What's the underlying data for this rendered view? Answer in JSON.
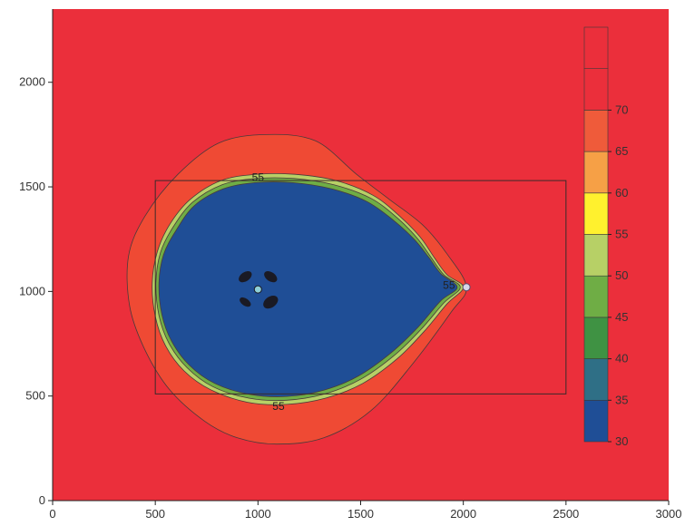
{
  "chart_data": {
    "type": "heatmap",
    "title": "",
    "xlabel": "",
    "ylabel": "",
    "xlim": [
      0,
      3000
    ],
    "ylim": [
      0,
      2350
    ],
    "x_ticks": [
      "0",
      "500",
      "1000",
      "1500",
      "2000",
      "2500",
      "3000"
    ],
    "y_ticks": [
      "0",
      "500",
      "1000",
      "1500",
      "2000"
    ],
    "x_tick_values": [
      0,
      500,
      1000,
      1500,
      2000,
      2500,
      3000
    ],
    "y_tick_values": [
      0,
      500,
      1000,
      1500,
      2000
    ],
    "colorbar": {
      "levels": [
        30,
        35,
        40,
        45,
        50,
        55,
        60,
        65,
        70
      ],
      "labels": [
        "30",
        "35",
        "40",
        "45",
        "50",
        "55",
        "60",
        "65",
        "70"
      ],
      "colors": [
        "#1f4e96",
        "#2f6f86",
        "#3f9243",
        "#6fad45",
        "#b7d066",
        "#fff12e",
        "#f6a046",
        "#ef5b3a",
        "#eb2f3b",
        "#eb2f3b"
      ]
    },
    "contours": [
      {
        "name": "outer",
        "color": "#ef4a34",
        "points": [
          [
            2015,
            1020
          ],
          [
            1920,
            1180
          ],
          [
            1800,
            1320
          ],
          [
            1640,
            1440
          ],
          [
            1480,
            1560
          ],
          [
            1280,
            1720
          ],
          [
            1040,
            1750
          ],
          [
            810,
            1710
          ],
          [
            610,
            1560
          ],
          [
            450,
            1360
          ],
          [
            370,
            1170
          ],
          [
            375,
            930
          ],
          [
            450,
            720
          ],
          [
            570,
            530
          ],
          [
            740,
            380
          ],
          [
            900,
            300
          ],
          [
            1090,
            270
          ],
          [
            1320,
            300
          ],
          [
            1550,
            430
          ],
          [
            1750,
            650
          ],
          [
            1940,
            900
          ]
        ]
      },
      {
        "name": "55",
        "color": "#b7d066",
        "points": [
          [
            2000,
            1020
          ],
          [
            1920,
            1080
          ],
          [
            1860,
            1160
          ],
          [
            1790,
            1260
          ],
          [
            1690,
            1360
          ],
          [
            1560,
            1460
          ],
          [
            1380,
            1530
          ],
          [
            1180,
            1560
          ],
          [
            990,
            1560
          ],
          [
            820,
            1530
          ],
          [
            670,
            1440
          ],
          [
            570,
            1320
          ],
          [
            510,
            1190
          ],
          [
            485,
            1040
          ],
          [
            500,
            880
          ],
          [
            550,
            740
          ],
          [
            640,
            620
          ],
          [
            770,
            530
          ],
          [
            950,
            470
          ],
          [
            1140,
            460
          ],
          [
            1330,
            490
          ],
          [
            1510,
            560
          ],
          [
            1680,
            680
          ],
          [
            1810,
            810
          ],
          [
            1920,
            940
          ]
        ]
      },
      {
        "name": "50",
        "color": "#6fad45",
        "points": [
          [
            1985,
            1020
          ],
          [
            1905,
            1080
          ],
          [
            1845,
            1160
          ],
          [
            1775,
            1255
          ],
          [
            1680,
            1350
          ],
          [
            1550,
            1445
          ],
          [
            1370,
            1510
          ],
          [
            1175,
            1540
          ],
          [
            990,
            1540
          ],
          [
            825,
            1510
          ],
          [
            680,
            1425
          ],
          [
            585,
            1305
          ],
          [
            525,
            1185
          ],
          [
            503,
            1040
          ],
          [
            518,
            885
          ],
          [
            565,
            755
          ],
          [
            655,
            635
          ],
          [
            780,
            545
          ],
          [
            955,
            490
          ],
          [
            1140,
            480
          ],
          [
            1325,
            510
          ],
          [
            1500,
            580
          ],
          [
            1665,
            695
          ],
          [
            1795,
            820
          ],
          [
            1905,
            945
          ]
        ]
      },
      {
        "name": "35",
        "color": "#1f4e96",
        "points": [
          [
            1970,
            1020
          ],
          [
            1890,
            1085
          ],
          [
            1830,
            1165
          ],
          [
            1760,
            1250
          ],
          [
            1660,
            1340
          ],
          [
            1530,
            1430
          ],
          [
            1360,
            1490
          ],
          [
            1170,
            1520
          ],
          [
            985,
            1520
          ],
          [
            830,
            1490
          ],
          [
            690,
            1410
          ],
          [
            600,
            1290
          ],
          [
            540,
            1175
          ],
          [
            518,
            1040
          ],
          [
            532,
            890
          ],
          [
            578,
            765
          ],
          [
            665,
            648
          ],
          [
            790,
            560
          ],
          [
            960,
            508
          ],
          [
            1140,
            498
          ],
          [
            1320,
            528
          ],
          [
            1490,
            596
          ],
          [
            1650,
            708
          ],
          [
            1780,
            830
          ],
          [
            1890,
            955
          ]
        ]
      }
    ],
    "rectangle": {
      "x0": 500,
      "x1": 2500,
      "y0": 510,
      "y1": 1530
    },
    "contour_labels": [
      {
        "text": "55",
        "x": 1000,
        "y": 1545
      },
      {
        "text": "55",
        "x": 1100,
        "y": 450
      },
      {
        "text": "55",
        "x": 1930,
        "y": 1030
      }
    ],
    "markers": [
      {
        "name": "source",
        "x": 1000,
        "y": 1010,
        "color": "#8fd0d8"
      },
      {
        "name": "receiver",
        "x": 2015,
        "y": 1020,
        "color": "#d7d7e8"
      }
    ],
    "field_color": "#eb2f3b",
    "legend_placement": "right"
  }
}
